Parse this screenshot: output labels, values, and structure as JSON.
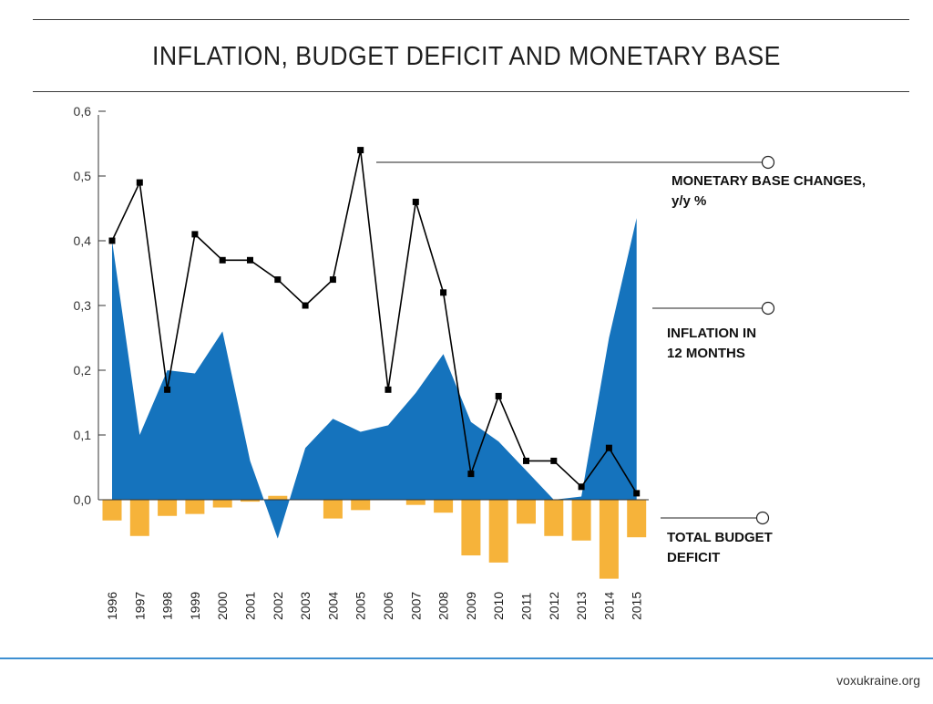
{
  "title": "INFLATION, BUDGET DEFICIT AND MONETARY BASE",
  "source": "voxukraine.org",
  "chart_data": {
    "type": "area",
    "categories": [
      "1996",
      "1997",
      "1998",
      "1999",
      "2000",
      "2001",
      "2002",
      "2003",
      "2004",
      "2005",
      "2006",
      "2007",
      "2008",
      "2009",
      "2010",
      "2011",
      "2012",
      "2013",
      "2014",
      "2015"
    ],
    "y_ticks": [
      "0,0",
      "0,1",
      "0,2",
      "0,3",
      "0,4",
      "0,5",
      "0,6"
    ],
    "ylim": [
      -0.12,
      0.6
    ],
    "series": [
      {
        "name": "MONETARY BASE CHANGES, y/y %",
        "kind": "line",
        "color": "#000000",
        "values": [
          0.4,
          0.49,
          0.17,
          0.41,
          0.37,
          0.37,
          0.34,
          0.3,
          0.34,
          0.54,
          0.17,
          0.46,
          0.32,
          0.04,
          0.16,
          0.06,
          0.06,
          0.02,
          0.08,
          0.01
        ]
      },
      {
        "name": "INFLATION IN 12 MONTHS",
        "kind": "area",
        "color": "#1573bd",
        "values": [
          0.4,
          0.1,
          0.2,
          0.195,
          0.26,
          0.06,
          -0.06,
          0.08,
          0.125,
          0.105,
          0.115,
          0.165,
          0.225,
          0.12,
          0.09,
          0.045,
          0.0,
          0.005,
          0.25,
          0.435
        ]
      },
      {
        "name": "TOTAL BUDGET DEFICIT",
        "kind": "bar",
        "color": "#f6b33a",
        "values": [
          -0.032,
          -0.056,
          -0.025,
          -0.022,
          -0.012,
          -0.003,
          0.006,
          0.0,
          -0.029,
          -0.016,
          0.0,
          -0.008,
          -0.02,
          -0.086,
          -0.097,
          -0.037,
          -0.056,
          -0.063,
          -0.122,
          -0.058
        ]
      }
    ],
    "legend": [
      {
        "line1": "MONETARY BASE CHANGES,",
        "line2": "y/y %"
      },
      {
        "line1": "INFLATION IN",
        "line2": "12 MONTHS"
      },
      {
        "line1": "TOTAL BUDGET",
        "line2": "DEFICIT"
      }
    ]
  }
}
